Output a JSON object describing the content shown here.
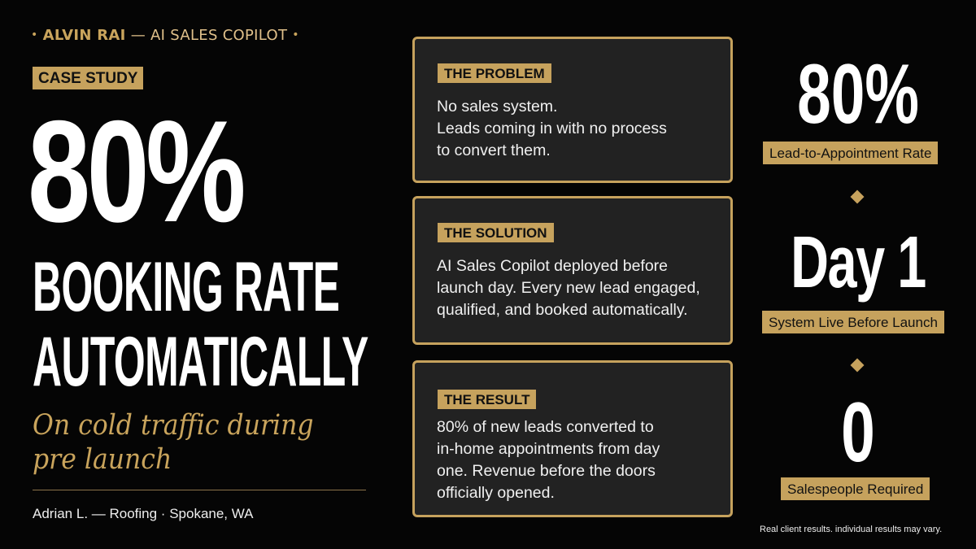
{
  "brand": {
    "name": "ALVIN RAI",
    "rest": "— AI SALES COPILOT",
    "bullet": "•",
    "accent_color": "#c6a25d"
  },
  "hero": {
    "tag": "CASE STUDY",
    "big_stat": "80%",
    "headline_line1": "BOOKING RATE",
    "headline_line2": "AUTOMATICALLY",
    "subheadline": "On cold traffic during pre launch",
    "client": "Adrian L. — Roofing · Spokane, WA"
  },
  "cards": [
    {
      "tag": "THE PROBLEM",
      "body": "No sales system.\nLeads coming in with no process\nto convert them."
    },
    {
      "tag": "THE SOLUTION",
      "body": "AI Sales Copilot deployed before\nlaunch day. Every new lead engaged,\nqualified, and booked automatically."
    },
    {
      "tag": "THE RESULT",
      "body": "80% of new leads converted to\nin-home appointments from day\none. Revenue before the doors\nofficially opened."
    }
  ],
  "stats": [
    {
      "value": "80%",
      "label": "Lead-to-Appointment Rate"
    },
    {
      "value": "Day 1",
      "label": "System Live Before Launch"
    },
    {
      "value": "0",
      "label": "Salespeople Required"
    }
  ],
  "disclaimer": "Real client results. individual results may vary."
}
